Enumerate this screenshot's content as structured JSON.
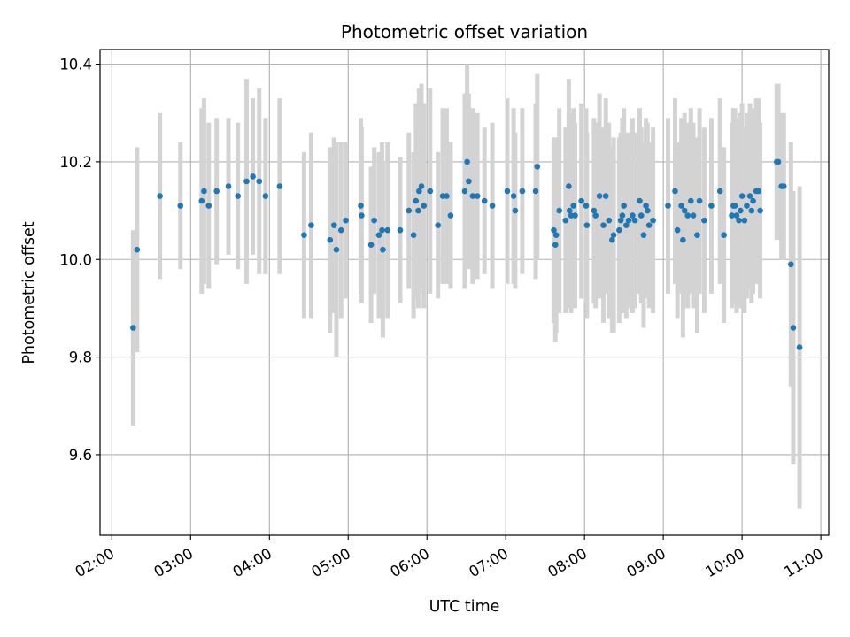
{
  "chart_data": {
    "type": "scatter",
    "title": "Photometric offset variation",
    "xlabel": "UTC time",
    "ylabel": "Photometric offset",
    "x_unit": "hours UTC",
    "xlim": [
      1.85,
      11.1
    ],
    "ylim": [
      9.435,
      10.43
    ],
    "x_ticks": [
      2,
      3,
      4,
      5,
      6,
      7,
      8,
      9,
      10,
      11
    ],
    "x_tick_labels": [
      "02:00",
      "03:00",
      "04:00",
      "05:00",
      "06:00",
      "07:00",
      "08:00",
      "09:00",
      "10:00",
      "11:00"
    ],
    "y_ticks": [
      9.6,
      9.8,
      10.0,
      10.2,
      10.4
    ],
    "y_tick_labels": [
      "9.6",
      "9.8",
      "10.0",
      "10.2",
      "10.4"
    ],
    "grid": true,
    "legend": "none",
    "colors": {
      "marker": "#1f77b4",
      "errorbar": "#d3d3d3",
      "grid": "#b0b0b0"
    },
    "series": [
      {
        "points": [
          [
            2.27,
            9.86,
            0.2
          ],
          [
            2.32,
            10.02,
            0.21
          ],
          [
            2.61,
            10.13,
            0.17
          ],
          [
            2.87,
            10.11,
            0.13
          ],
          [
            3.14,
            10.12,
            0.19
          ],
          [
            3.17,
            10.14,
            0.19
          ],
          [
            3.23,
            10.11,
            0.17
          ],
          [
            3.33,
            10.14,
            0.15
          ],
          [
            3.48,
            10.15,
            0.14
          ],
          [
            3.6,
            10.13,
            0.15
          ],
          [
            3.71,
            10.16,
            0.21
          ],
          [
            3.79,
            10.17,
            0.16
          ],
          [
            3.87,
            10.16,
            0.19
          ],
          [
            3.95,
            10.13,
            0.16
          ],
          [
            4.13,
            10.15,
            0.18
          ],
          [
            4.44,
            10.05,
            0.17
          ],
          [
            4.53,
            10.07,
            0.19
          ],
          [
            4.77,
            10.04,
            0.19
          ],
          [
            4.82,
            10.07,
            0.18
          ],
          [
            4.85,
            10.02,
            0.22
          ],
          [
            4.91,
            10.06,
            0.18
          ],
          [
            4.97,
            10.08,
            0.16
          ],
          [
            5.16,
            10.11,
            0.18
          ],
          [
            5.17,
            10.09,
            0.18
          ],
          [
            5.29,
            10.03,
            0.16
          ],
          [
            5.33,
            10.08,
            0.15
          ],
          [
            5.39,
            10.05,
            0.17
          ],
          [
            5.44,
            10.02,
            0.18
          ],
          [
            5.43,
            10.06,
            0.18
          ],
          [
            5.5,
            10.06,
            0.18
          ],
          [
            5.66,
            10.06,
            0.15
          ],
          [
            5.77,
            10.1,
            0.16
          ],
          [
            5.83,
            10.05,
            0.17
          ],
          [
            5.86,
            10.12,
            0.2
          ],
          [
            5.89,
            10.1,
            0.2
          ],
          [
            5.9,
            10.14,
            0.21
          ],
          [
            5.93,
            10.15,
            0.21
          ],
          [
            5.96,
            10.11,
            0.21
          ],
          [
            6.04,
            10.14,
            0.21
          ],
          [
            6.14,
            10.07,
            0.15
          ],
          [
            6.2,
            10.13,
            0.18
          ],
          [
            6.25,
            10.13,
            0.18
          ],
          [
            6.3,
            10.09,
            0.15
          ],
          [
            6.48,
            10.14,
            0.2
          ],
          [
            6.51,
            10.2,
            0.2
          ],
          [
            6.53,
            10.16,
            0.18
          ],
          [
            6.58,
            10.13,
            0.18
          ],
          [
            6.64,
            10.13,
            0.17
          ],
          [
            6.73,
            10.12,
            0.15
          ],
          [
            6.83,
            10.11,
            0.17
          ],
          [
            7.02,
            10.14,
            0.19
          ],
          [
            7.1,
            10.13,
            0.18
          ],
          [
            7.12,
            10.1,
            0.16
          ],
          [
            7.21,
            10.14,
            0.17
          ],
          [
            7.38,
            10.14,
            0.18
          ],
          [
            7.4,
            10.19,
            0.19
          ],
          [
            7.61,
            10.06,
            0.19
          ],
          [
            7.63,
            10.03,
            0.2
          ],
          [
            7.64,
            10.05,
            0.2
          ],
          [
            7.68,
            10.1,
            0.21
          ],
          [
            7.76,
            10.08,
            0.19
          ],
          [
            7.8,
            10.15,
            0.22
          ],
          [
            7.81,
            10.1,
            0.2
          ],
          [
            7.83,
            10.09,
            0.2
          ],
          [
            7.86,
            10.11,
            0.2
          ],
          [
            7.88,
            10.09,
            0.19
          ],
          [
            7.96,
            10.12,
            0.2
          ],
          [
            8.02,
            10.11,
            0.2
          ],
          [
            8.03,
            10.07,
            0.19
          ],
          [
            8.12,
            10.1,
            0.19
          ],
          [
            8.14,
            10.09,
            0.19
          ],
          [
            8.19,
            10.13,
            0.21
          ],
          [
            8.24,
            10.07,
            0.2
          ],
          [
            8.27,
            10.13,
            0.2
          ],
          [
            8.31,
            10.08,
            0.2
          ],
          [
            8.35,
            10.04,
            0.19
          ],
          [
            8.37,
            10.05,
            0.2
          ],
          [
            8.44,
            10.06,
            0.19
          ],
          [
            8.46,
            10.08,
            0.18
          ],
          [
            8.48,
            10.09,
            0.2
          ],
          [
            8.5,
            10.11,
            0.2
          ],
          [
            8.53,
            10.07,
            0.19
          ],
          [
            8.56,
            10.08,
            0.18
          ],
          [
            8.61,
            10.09,
            0.2
          ],
          [
            8.64,
            10.08,
            0.18
          ],
          [
            8.7,
            10.12,
            0.19
          ],
          [
            8.72,
            10.09,
            0.18
          ],
          [
            8.75,
            10.05,
            0.19
          ],
          [
            8.78,
            10.11,
            0.18
          ],
          [
            8.8,
            10.1,
            0.18
          ],
          [
            8.82,
            10.07,
            0.17
          ],
          [
            8.87,
            10.08,
            0.19
          ],
          [
            9.06,
            10.11,
            0.18
          ],
          [
            9.15,
            10.14,
            0.19
          ],
          [
            9.18,
            10.06,
            0.18
          ],
          [
            9.23,
            10.11,
            0.18
          ],
          [
            9.25,
            10.04,
            0.2
          ],
          [
            9.27,
            10.1,
            0.2
          ],
          [
            9.31,
            10.09,
            0.19
          ],
          [
            9.35,
            10.12,
            0.19
          ],
          [
            9.38,
            10.09,
            0.19
          ],
          [
            9.43,
            10.05,
            0.2
          ],
          [
            9.46,
            10.12,
            0.19
          ],
          [
            9.52,
            10.08,
            0.19
          ],
          [
            9.61,
            10.11,
            0.18
          ],
          [
            9.72,
            10.14,
            0.19
          ],
          [
            9.77,
            10.05,
            0.18
          ],
          [
            9.87,
            10.09,
            0.19
          ],
          [
            9.89,
            10.11,
            0.2
          ],
          [
            9.91,
            10.11,
            0.2
          ],
          [
            9.93,
            10.09,
            0.2
          ],
          [
            9.96,
            10.08,
            0.18
          ],
          [
            9.98,
            10.1,
            0.2
          ],
          [
            10.0,
            10.13,
            0.19
          ],
          [
            10.03,
            10.08,
            0.19
          ],
          [
            10.06,
            10.11,
            0.19
          ],
          [
            10.1,
            10.13,
            0.19
          ],
          [
            10.12,
            10.1,
            0.19
          ],
          [
            10.14,
            10.12,
            0.19
          ],
          [
            10.18,
            10.14,
            0.19
          ],
          [
            10.21,
            10.14,
            0.19
          ],
          [
            10.23,
            10.1,
            0.18
          ],
          [
            10.44,
            10.2,
            0.16
          ],
          [
            10.46,
            10.2,
            0.16
          ],
          [
            10.5,
            10.15,
            0.15
          ],
          [
            10.53,
            10.15,
            0.15
          ],
          [
            10.62,
            9.99,
            0.25
          ],
          [
            10.65,
            9.86,
            0.28
          ],
          [
            10.73,
            9.82,
            0.33
          ]
        ]
      }
    ]
  }
}
